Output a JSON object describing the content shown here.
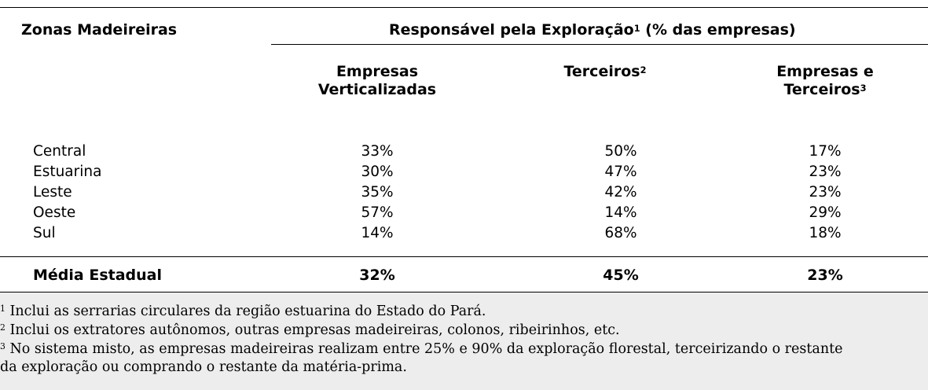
{
  "table": {
    "header": {
      "row_label": "Zonas Madeireiras",
      "group_label": "Responsável pela Exploração",
      "group_sup": "1",
      "group_suffix": " (% das empresas)",
      "col1": "Empresas Verticalizadas",
      "col2": "Terceiros",
      "col2_sup": "2",
      "col3_line1": "Empresas e",
      "col3_line2": "Terceiros",
      "col3_sup": "3"
    },
    "rows": [
      {
        "zone": "Central",
        "verticalizadas": "33%",
        "terceiros": "50%",
        "mistas": "17%"
      },
      {
        "zone": "Estuarina",
        "verticalizadas": "30%",
        "terceiros": "47%",
        "mistas": "23%"
      },
      {
        "zone": "Leste",
        "verticalizadas": "35%",
        "terceiros": "42%",
        "mistas": "23%"
      },
      {
        "zone": "Oeste",
        "verticalizadas": "57%",
        "terceiros": "14%",
        "mistas": "29%"
      },
      {
        "zone": "Sul",
        "verticalizadas": "14%",
        "terceiros": "68%",
        "mistas": "18%"
      }
    ],
    "total": {
      "zone": "Média Estadual",
      "verticalizadas": "32%",
      "terceiros": "45%",
      "mistas": "23%"
    }
  },
  "footnotes": [
    {
      "mark": "1",
      "text": " Inclui as serrarias circulares da região estuarina do Estado do Pará."
    },
    {
      "mark": "2",
      "text": " Inclui os extratores autônomos, outras empresas madeireiras, colonos, ribeirinhos, etc."
    },
    {
      "mark": "3",
      "text": " No sistema misto, as empresas madeireiras realizam entre 25% e 90% da exploração florestal, terceirizando o restante",
      "text_cont": "da exploração ou comprando o restante da matéria-prima."
    }
  ]
}
